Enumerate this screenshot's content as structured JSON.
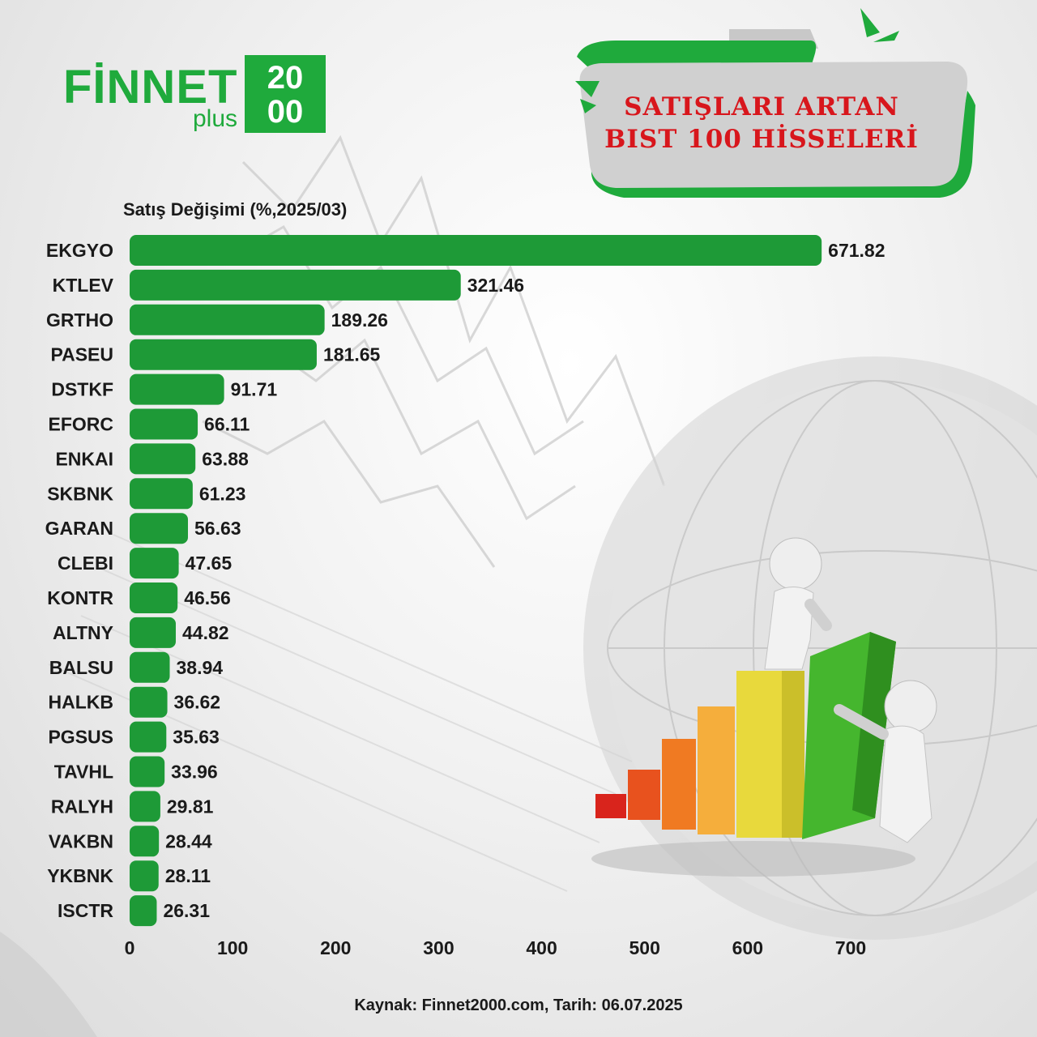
{
  "brand": {
    "name": "FİNNET",
    "sub": "plus",
    "box_line1": "20",
    "box_line2": "00",
    "color": "#1faa3c"
  },
  "title": {
    "line1": "SATIŞLARI ARTAN",
    "line2": "BIST 100 HİSSELERİ",
    "color": "#d8161c"
  },
  "footer": "Kaynak: Finnet2000.com, Tarih: 06.07.2025",
  "chart_data": {
    "type": "bar",
    "orientation": "horizontal",
    "title": "Satış Değişimi (%,2025/03)",
    "categories": [
      "EKGYO",
      "KTLEV",
      "GRTHO",
      "PASEU",
      "DSTKF",
      "EFORC",
      "ENKAI",
      "SKBNK",
      "GARAN",
      "CLEBI",
      "KONTR",
      "ALTNY",
      "BALSU",
      "HALKB",
      "PGSUS",
      "TAVHL",
      "RALYH",
      "VAKBN",
      "YKBNK",
      "ISCTR"
    ],
    "values": [
      671.82,
      321.46,
      189.26,
      181.65,
      91.71,
      66.11,
      63.88,
      61.23,
      56.63,
      47.65,
      46.56,
      44.82,
      38.94,
      36.62,
      35.63,
      33.96,
      29.81,
      28.44,
      28.11,
      26.31
    ],
    "value_labels": [
      "671.82",
      "321.46",
      "189.26",
      "181.65",
      "91.71",
      "66.11",
      "63.88",
      "61.23",
      "56.63",
      "47.65",
      "46.56",
      "44.82",
      "38.94",
      "36.62",
      "35.63",
      "33.96",
      "29.81",
      "28.44",
      "28.11",
      "26.31"
    ],
    "xlim": [
      0,
      700
    ],
    "x_ticks": [
      "0",
      "100",
      "200",
      "300",
      "400",
      "500",
      "600",
      "700"
    ],
    "bar_color": "#1e9a37",
    "grid": false,
    "legend": "none"
  }
}
